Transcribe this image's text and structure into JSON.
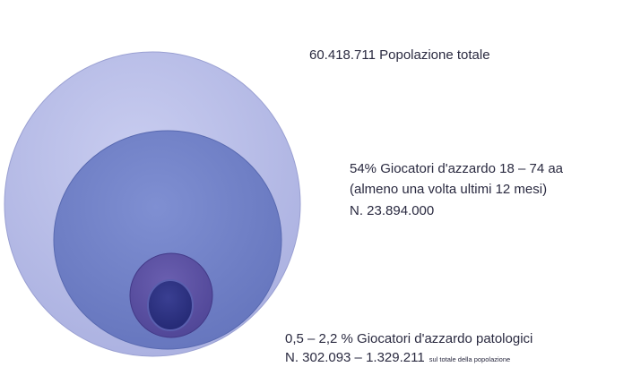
{
  "levels": [
    {
      "lines": [
        "60.418.711 Popolazione totale"
      ]
    },
    {
      "lines": [
        "54% Giocatori d'azzardo 18 – 74 aa",
        "(almeno una volta ultimi 12 mesi)",
        "N. 23.894.000"
      ]
    },
    {
      "lines": [
        "0,5 – 2,2 % Giocatori d'azzardo patologici",
        "N. 302.093 – 1.329.211"
      ],
      "note": "sul totale della popolazione"
    }
  ]
}
